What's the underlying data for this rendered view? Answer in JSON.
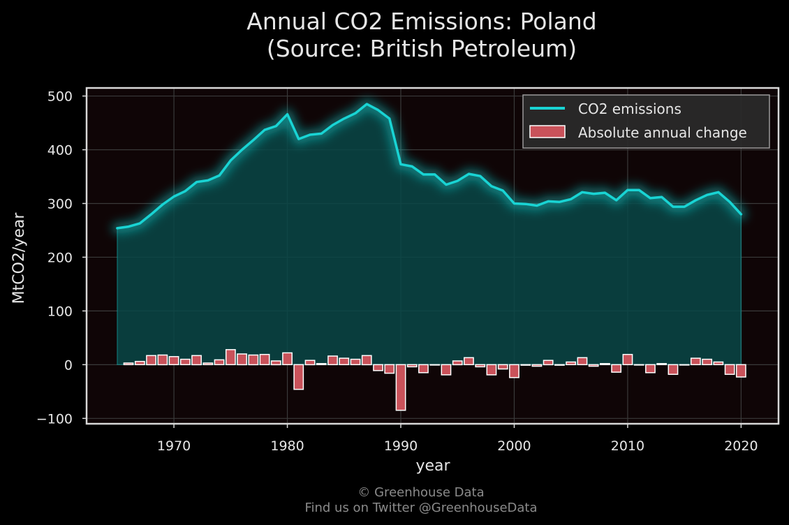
{
  "colors": {
    "background": "#000000",
    "plot_background": "#0f0506",
    "line": "#19d4d4",
    "area": "#084848",
    "bar": "#c9525a",
    "bar_edge": "#ffffff",
    "text": "#e6e6e6",
    "footer_text": "#8a8a8a",
    "grid": "#3a3a3a"
  },
  "chart_data": {
    "type": "line",
    "title": "Annual CO2 Emissions: Poland",
    "subtitle": "(Source: British Petroleum)",
    "xlabel": "year",
    "ylabel": "MtCO2/year",
    "xlim": [
      1962.3,
      2023.3
    ],
    "ylim": [
      -110,
      515
    ],
    "xticks": [
      1970,
      1980,
      1990,
      2000,
      2010,
      2020
    ],
    "yticks": [
      -100,
      0,
      100,
      200,
      300,
      400,
      500
    ],
    "ytick_labels": [
      "−100",
      "0",
      "100",
      "200",
      "300",
      "400",
      "500"
    ],
    "grid": true,
    "legend_position": "top-right",
    "x": [
      1965,
      1966,
      1967,
      1968,
      1969,
      1970,
      1971,
      1972,
      1973,
      1974,
      1975,
      1976,
      1977,
      1978,
      1979,
      1980,
      1981,
      1982,
      1983,
      1984,
      1985,
      1986,
      1987,
      1988,
      1989,
      1990,
      1991,
      1992,
      1993,
      1994,
      1995,
      1996,
      1997,
      1998,
      1999,
      2000,
      2001,
      2002,
      2003,
      2004,
      2005,
      2006,
      2007,
      2008,
      2009,
      2010,
      2011,
      2012,
      2013,
      2014,
      2015,
      2016,
      2017,
      2018,
      2019,
      2020
    ],
    "series": [
      {
        "name": "CO2 emissions",
        "kind": "line",
        "values": [
          254,
          257,
          263,
          280,
          298,
          313,
          323,
          340,
          343,
          352,
          380,
          400,
          418,
          437,
          444,
          466,
          420,
          428,
          430,
          446,
          458,
          468,
          485,
          474,
          458,
          373,
          369,
          354,
          354,
          335,
          342,
          355,
          351,
          332,
          324,
          300,
          299,
          296,
          304,
          303,
          308,
          321,
          318,
          320,
          306,
          325,
          325,
          310,
          312,
          294,
          294,
          306,
          316,
          321,
          303,
          280
        ]
      },
      {
        "name": "Absolute annual change",
        "kind": "bar",
        "values": [
          null,
          3,
          6,
          17,
          18,
          15,
          10,
          17,
          3,
          9,
          28,
          20,
          18,
          19,
          7,
          22,
          -46,
          8,
          2,
          16,
          12,
          10,
          17,
          -11,
          -16,
          -85,
          -4,
          -15,
          0,
          -19,
          7,
          13,
          -4,
          -19,
          -8,
          -24,
          -1,
          -3,
          8,
          -1,
          5,
          13,
          -3,
          2,
          -14,
          19,
          0,
          -15,
          2,
          -18,
          0,
          12,
          10,
          5,
          -18,
          -23
        ]
      }
    ]
  },
  "footer": {
    "line1": "© Greenhouse Data",
    "line2": "Find us on Twitter @GreenhouseData"
  }
}
